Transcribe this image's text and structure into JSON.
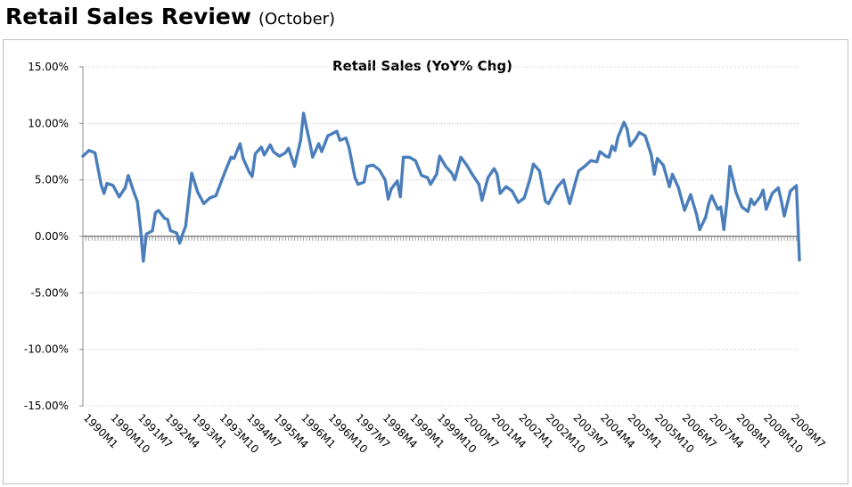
{
  "header": {
    "title": "Retail Sales Review",
    "subtitle": "(October)"
  },
  "colors": {
    "series": "#4a7ebb",
    "grid": "#bfbfbf",
    "axis": "#7f7f7f"
  },
  "chart_data": {
    "type": "line",
    "title": "Retail Sales (YoY% Chg)",
    "xlabel": "",
    "ylabel": "",
    "ylim": [
      -0.15,
      0.15
    ],
    "y_ticks": [
      0.15,
      0.1,
      0.05,
      0.0,
      -0.05,
      -0.1,
      -0.15
    ],
    "y_tick_labels": [
      "15.00%",
      "10.00%",
      "5.00%",
      "0.00%",
      "-5.00%",
      "-10.00%",
      "-15.00%"
    ],
    "x_range": [
      "1990M1",
      "2009M10"
    ],
    "x_tick_labels": [
      "1990M1",
      "1990M10",
      "1991M7",
      "1992M4",
      "1993M1",
      "1993M10",
      "1994M7",
      "1995M4",
      "1996M1",
      "1996M10",
      "1997M7",
      "1998M4",
      "1999M1",
      "1999M10",
      "2000M7",
      "2001M4",
      "2002M1",
      "2002M10",
      "2003M7",
      "2004M4",
      "2005M1",
      "2005M10",
      "2006M7",
      "2007M4",
      "2008M1",
      "2008M10",
      "2009M7"
    ],
    "grid": true,
    "legend": "none",
    "series": [
      {
        "points": [
          [
            "1990M1",
            0.071
          ],
          [
            "1990M3",
            0.076
          ],
          [
            "1990M5",
            0.074
          ],
          [
            "1990M7",
            0.046
          ],
          [
            "1990M8",
            0.038
          ],
          [
            "1990M9",
            0.047
          ],
          [
            "1990M11",
            0.045
          ],
          [
            "1991M1",
            0.035
          ],
          [
            "1991M3",
            0.043
          ],
          [
            "1991M4",
            0.054
          ],
          [
            "1991M6",
            0.038
          ],
          [
            "1991M7",
            0.031
          ],
          [
            "1991M8",
            0.008
          ],
          [
            "1991M9",
            -0.022
          ],
          [
            "1991M10",
            0.002
          ],
          [
            "1991M12",
            0.005
          ],
          [
            "1992M1",
            0.021
          ],
          [
            "1992M2",
            0.023
          ],
          [
            "1992M4",
            0.016
          ],
          [
            "1992M5",
            0.015
          ],
          [
            "1992M6",
            0.005
          ],
          [
            "1992M8",
            0.003
          ],
          [
            "1992M9",
            -0.006
          ],
          [
            "1992M10",
            0.002
          ],
          [
            "1992M11",
            0.009
          ],
          [
            "1993M1",
            0.056
          ],
          [
            "1993M3",
            0.039
          ],
          [
            "1993M5",
            0.029
          ],
          [
            "1993M7",
            0.034
          ],
          [
            "1993M9",
            0.036
          ],
          [
            "1993M12",
            0.057
          ],
          [
            "1994M2",
            0.07
          ],
          [
            "1994M3",
            0.069
          ],
          [
            "1994M5",
            0.082
          ],
          [
            "1994M6",
            0.069
          ],
          [
            "1994M8",
            0.057
          ],
          [
            "1994M9",
            0.053
          ],
          [
            "1994M10",
            0.073
          ],
          [
            "1994M12",
            0.079
          ],
          [
            "1995M1",
            0.072
          ],
          [
            "1995M3",
            0.081
          ],
          [
            "1995M4",
            0.075
          ],
          [
            "1995M6",
            0.071
          ],
          [
            "1995M8",
            0.074
          ],
          [
            "1995M9",
            0.078
          ],
          [
            "1995M11",
            0.062
          ],
          [
            "1996M1",
            0.085
          ],
          [
            "1996M2",
            0.109
          ],
          [
            "1996M3",
            0.096
          ],
          [
            "1996M4",
            0.084
          ],
          [
            "1996M5",
            0.07
          ],
          [
            "1996M7",
            0.082
          ],
          [
            "1996M8",
            0.075
          ],
          [
            "1996M10",
            0.089
          ],
          [
            "1997M1",
            0.093
          ],
          [
            "1997M2",
            0.085
          ],
          [
            "1997M4",
            0.087
          ],
          [
            "1997M5",
            0.079
          ],
          [
            "1997M7",
            0.052
          ],
          [
            "1997M8",
            0.046
          ],
          [
            "1997M10",
            0.048
          ],
          [
            "1997M11",
            0.062
          ],
          [
            "1998M1",
            0.063
          ],
          [
            "1998M3",
            0.059
          ],
          [
            "1998M5",
            0.05
          ],
          [
            "1998M6",
            0.033
          ],
          [
            "1998M7",
            0.042
          ],
          [
            "1998M9",
            0.049
          ],
          [
            "1998M10",
            0.035
          ],
          [
            "1998M11",
            0.07
          ],
          [
            "1999M1",
            0.07
          ],
          [
            "1999M3",
            0.067
          ],
          [
            "1999M5",
            0.054
          ],
          [
            "1999M7",
            0.052
          ],
          [
            "1999M8",
            0.046
          ],
          [
            "1999M10",
            0.055
          ],
          [
            "1999M11",
            0.071
          ],
          [
            "2000M1",
            0.062
          ],
          [
            "2000M3",
            0.056
          ],
          [
            "2000M4",
            0.05
          ],
          [
            "2000M6",
            0.07
          ],
          [
            "2000M8",
            0.063
          ],
          [
            "2000M10",
            0.054
          ],
          [
            "2000M12",
            0.046
          ],
          [
            "2001M1",
            0.032
          ],
          [
            "2001M3",
            0.052
          ],
          [
            "2001M5",
            0.06
          ],
          [
            "2001M6",
            0.055
          ],
          [
            "2001M7",
            0.038
          ],
          [
            "2001M9",
            0.044
          ],
          [
            "2001M11",
            0.04
          ],
          [
            "2002M1",
            0.03
          ],
          [
            "2002M3",
            0.034
          ],
          [
            "2002M5",
            0.052
          ],
          [
            "2002M6",
            0.064
          ],
          [
            "2002M8",
            0.058
          ],
          [
            "2002M10",
            0.031
          ],
          [
            "2002M11",
            0.029
          ],
          [
            "2003M2",
            0.044
          ],
          [
            "2003M4",
            0.05
          ],
          [
            "2003M5",
            0.039
          ],
          [
            "2003M6",
            0.029
          ],
          [
            "2003M8",
            0.049
          ],
          [
            "2003M9",
            0.058
          ],
          [
            "2003M11",
            0.062
          ],
          [
            "2004M1",
            0.067
          ],
          [
            "2004M3",
            0.066
          ],
          [
            "2004M4",
            0.075
          ],
          [
            "2004M6",
            0.071
          ],
          [
            "2004M7",
            0.07
          ],
          [
            "2004M8",
            0.08
          ],
          [
            "2004M9",
            0.076
          ],
          [
            "2004M10",
            0.088
          ],
          [
            "2004M12",
            0.101
          ],
          [
            "2005M1",
            0.095
          ],
          [
            "2005M2",
            0.08
          ],
          [
            "2005M4",
            0.087
          ],
          [
            "2005M5",
            0.092
          ],
          [
            "2005M7",
            0.089
          ],
          [
            "2005M9",
            0.072
          ],
          [
            "2005M10",
            0.055
          ],
          [
            "2005M11",
            0.069
          ],
          [
            "2006M1",
            0.063
          ],
          [
            "2006M3",
            0.044
          ],
          [
            "2006M4",
            0.055
          ],
          [
            "2006M6",
            0.043
          ],
          [
            "2006M7",
            0.033
          ],
          [
            "2006M8",
            0.023
          ],
          [
            "2006M10",
            0.037
          ],
          [
            "2006M12",
            0.019
          ],
          [
            "2007M1",
            0.006
          ],
          [
            "2007M3",
            0.017
          ],
          [
            "2007M4",
            0.029
          ],
          [
            "2007M5",
            0.036
          ],
          [
            "2007M7",
            0.024
          ],
          [
            "2007M8",
            0.026
          ],
          [
            "2007M9",
            0.006
          ],
          [
            "2007M10",
            0.03
          ],
          [
            "2007M11",
            0.062
          ],
          [
            "2008M1",
            0.039
          ],
          [
            "2008M3",
            0.026
          ],
          [
            "2008M5",
            0.022
          ],
          [
            "2008M6",
            0.033
          ],
          [
            "2008M7",
            0.028
          ],
          [
            "2008M9",
            0.035
          ],
          [
            "2008M10",
            0.041
          ],
          [
            "2008M11",
            0.024
          ],
          [
            "2009M1",
            0.038
          ],
          [
            "2009M3",
            0.043
          ],
          [
            "2009M4",
            0.032
          ],
          [
            "2009M5",
            0.018
          ],
          [
            "2009M7",
            0.04
          ],
          [
            "2009M9",
            0.045
          ],
          [
            "2009M10",
            -0.021
          ]
        ]
      }
    ]
  }
}
